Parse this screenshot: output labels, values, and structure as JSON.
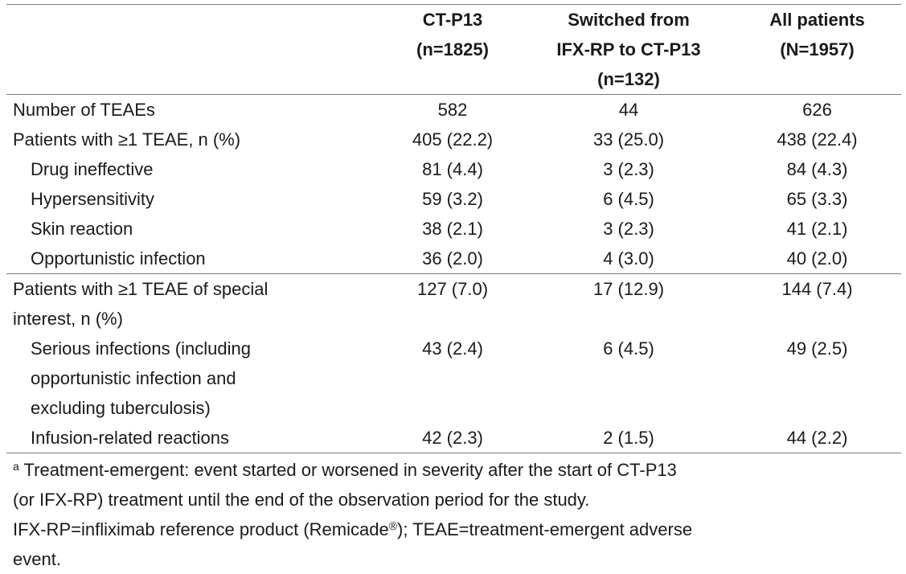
{
  "header": {
    "col1_line1": "CT-P13",
    "col1_line2": "(n=1825)",
    "col2_line1": "Switched from",
    "col2_line2": "IFX-RP to CT-P13",
    "col2_line3": "(n=132)",
    "col3_line1": "All patients",
    "col3_line2": "(N=1957)"
  },
  "rows": [
    {
      "label": "Number of TEAEs",
      "v1": "582",
      "v2": "44",
      "v3": "626"
    },
    {
      "label": "Patients with ≥1 TEAE, n (%)",
      "v1": "405 (22.2)",
      "v2": "33 (25.0)",
      "v3": "438 (22.4)"
    },
    {
      "label": "Drug ineffective",
      "v1": "81 (4.4)",
      "v2": "3 (2.3)",
      "v3": "84 (4.3)"
    },
    {
      "label": "Hypersensitivity",
      "v1": "59 (3.2)",
      "v2": "6 (4.5)",
      "v3": "65 (3.3)"
    },
    {
      "label": "Skin reaction",
      "v1": "38 (2.1)",
      "v2": "3 (2.3)",
      "v3": "41 (2.1)"
    },
    {
      "label": "Opportunistic infection",
      "v1": "36 (2.0)",
      "v2": "4 (3.0)",
      "v3": "40 (2.0)"
    },
    {
      "label_line1": "Patients with ≥1 TEAE of special",
      "label_line2": "interest, n (%)",
      "v1": "127 (7.0)",
      "v2": "17 (12.9)",
      "v3": "144 (7.4)"
    },
    {
      "label_line1": "Serious infections (including",
      "label_line2": "opportunistic infection and",
      "label_line3": "excluding tuberculosis)",
      "v1": "43 (2.4)",
      "v2": "6 (4.5)",
      "v3": "49 (2.5)"
    },
    {
      "label": "Infusion-related reactions",
      "v1": "42 (2.3)",
      "v2": "2 (1.5)",
      "v3": "44 (2.2)"
    }
  ],
  "footnotes": {
    "a_marker": "a",
    "a_line1": " Treatment-emergent: event started or worsened in severity after the start of CT-P13",
    "a_line2": "(or IFX-RP) treatment until the end of the observation period for the study.",
    "abbr_line1_pre": "IFX-RP=infliximab reference product (Remicade",
    "abbr_reg": "®",
    "abbr_line1_post": "); TEAE=treatment-emergent adverse",
    "abbr_line2": "event."
  }
}
